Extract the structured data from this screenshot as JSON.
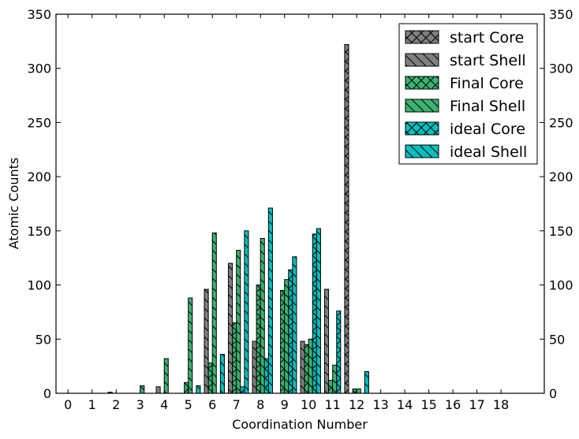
{
  "chart_data": {
    "type": "bar",
    "xlabel": "Coordination Number",
    "ylabel": "Atomic Counts",
    "x_ticks": [
      "0",
      "1",
      "2",
      "3",
      "4",
      "5",
      "6",
      "7",
      "8",
      "9",
      "10",
      "11",
      "12",
      "13",
      "14",
      "15",
      "16",
      "17",
      "18"
    ],
    "y_ticks": [
      "0",
      "50",
      "100",
      "150",
      "200",
      "250",
      "300",
      "350"
    ],
    "right_y_ticks": [
      "0",
      "50",
      "100",
      "150",
      "200",
      "250",
      "300",
      "350"
    ],
    "ylim": [
      0,
      350
    ],
    "xlim": [
      -0.5,
      19.8
    ],
    "grid": false,
    "legend_position": "top-right",
    "series": [
      {
        "name": "start Core",
        "color": "#808080",
        "hatch": "x",
        "values": [
          0,
          0,
          0,
          0,
          0,
          0,
          0,
          0,
          0,
          0,
          0,
          0,
          322,
          0,
          0,
          0,
          0,
          0,
          0
        ]
      },
      {
        "name": "start Shell",
        "color": "#808080",
        "hatch": "\\",
        "values": [
          0,
          0,
          1,
          0,
          6,
          0,
          96,
          120,
          48,
          0,
          48,
          96,
          0,
          0,
          0,
          0,
          0,
          0,
          0
        ]
      },
      {
        "name": "Final Core",
        "color": "#3cb371",
        "hatch": "x",
        "values": [
          0,
          0,
          0,
          0,
          0,
          10,
          28,
          65,
          100,
          95,
          45,
          12,
          4,
          0,
          0,
          0,
          0,
          0,
          0
        ]
      },
      {
        "name": "Final Shell",
        "color": "#3cb371",
        "hatch": "\\",
        "values": [
          0,
          0,
          0,
          7,
          32,
          88,
          148,
          132,
          143,
          105,
          50,
          26,
          4,
          0,
          0,
          0,
          0,
          0,
          0
        ]
      },
      {
        "name": "ideal Core",
        "color": "#00bfbf",
        "hatch": "x",
        "values": [
          0,
          0,
          0,
          0,
          0,
          0,
          0,
          6,
          32,
          114,
          147,
          76,
          0,
          0,
          0,
          0,
          0,
          0,
          0
        ]
      },
      {
        "name": "ideal Shell",
        "color": "#00bfbf",
        "hatch": "\\",
        "values": [
          0,
          0,
          0,
          0,
          0,
          7,
          36,
          150,
          171,
          126,
          152,
          0,
          20,
          0,
          0,
          0,
          0,
          0,
          0
        ]
      }
    ]
  }
}
